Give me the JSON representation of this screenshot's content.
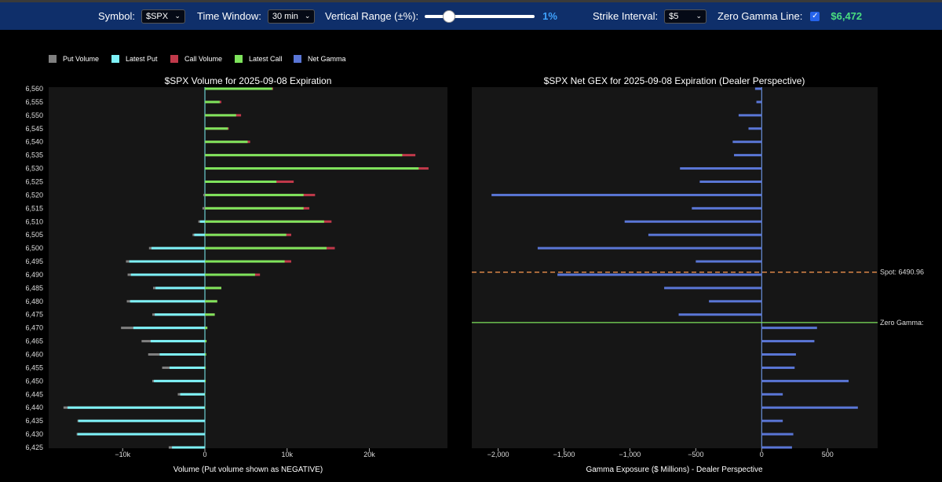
{
  "controls": {
    "symbol_label": "Symbol:",
    "symbol_value": "$SPX",
    "time_label": "Time Window:",
    "time_value": "30 min",
    "range_label": "Vertical Range (±%):",
    "range_value": "1%",
    "range_fraction": 0.01,
    "strike_label": "Strike Interval:",
    "strike_value": "$5",
    "zero_label": "Zero Gamma Line:",
    "zero_checked": true,
    "zero_value": "$6,472"
  },
  "legend": [
    {
      "label": "Put Volume",
      "color": "#808080"
    },
    {
      "label": "Latest Put",
      "color": "#7ef2f8"
    },
    {
      "label": "Call Volume",
      "color": "#c0394a"
    },
    {
      "label": "Latest Call",
      "color": "#7ee45c"
    },
    {
      "label": "Net Gamma",
      "color": "#5a76d6"
    }
  ],
  "chart_data": [
    {
      "type": "bar",
      "orientation": "horizontal",
      "title": "$SPX Volume for 2025-09-08 Expiration",
      "xlabel": "Volume (Put volume shown as NEGATIVE)",
      "ylabel": "",
      "xlim": [
        -19000,
        29500
      ],
      "x_ticks": [
        {
          "v": -10000,
          "label": "−10k"
        },
        {
          "v": 0,
          "label": "0"
        },
        {
          "v": 10000,
          "label": "10k"
        },
        {
          "v": 20000,
          "label": "20k"
        }
      ],
      "strikes": [
        6560,
        6555,
        6550,
        6545,
        6540,
        6535,
        6530,
        6525,
        6520,
        6515,
        6510,
        6505,
        6500,
        6495,
        6490,
        6485,
        6480,
        6475,
        6470,
        6465,
        6460,
        6455,
        6450,
        6445,
        6440,
        6435,
        6430,
        6425
      ],
      "strike_labels": [
        "6,560",
        "6,555",
        "6,550",
        "6,545",
        "6,540",
        "6,535",
        "6,530",
        "6,525",
        "6,520",
        "6,515",
        "6,510",
        "6,505",
        "6,500",
        "6,495",
        "6,490",
        "6,485",
        "6,480",
        "6,475",
        "6,470",
        "6,465",
        "6,460",
        "6,455",
        "6,450",
        "6,445",
        "6,440",
        "6,435",
        "6,430",
        "6,425"
      ],
      "series": [
        {
          "name": "Put Volume",
          "color": "#808080",
          "values": [
            0,
            0,
            0,
            0,
            0,
            0,
            0,
            0,
            -200,
            -300,
            -800,
            -1500,
            -6800,
            -9600,
            -9400,
            -6300,
            -9500,
            -6400,
            -10200,
            -7700,
            -6900,
            -5200,
            -6400,
            -3300,
            -17200,
            -15500,
            -15600,
            -4400
          ]
        },
        {
          "name": "Latest Put",
          "color": "#7ef2f8",
          "values": [
            0,
            0,
            0,
            0,
            0,
            0,
            0,
            0,
            0,
            0,
            -600,
            -1300,
            -6500,
            -9200,
            -9000,
            -6000,
            -9100,
            -6100,
            -8700,
            -6600,
            -5500,
            -4300,
            -6200,
            -3000,
            -16700,
            -15400,
            -15500,
            -4000
          ]
        },
        {
          "name": "Call Volume",
          "color": "#c0394a",
          "values": [
            8300,
            2000,
            4400,
            2900,
            5500,
            25600,
            27200,
            10800,
            13400,
            12700,
            15400,
            10500,
            15800,
            10500,
            6700,
            2000,
            1500,
            1200,
            300,
            200,
            150,
            100,
            100,
            50,
            50,
            0,
            0,
            0
          ]
        },
        {
          "name": "Latest Call",
          "color": "#7ee45c",
          "values": [
            8200,
            1800,
            3800,
            2800,
            5200,
            24000,
            26000,
            8700,
            12000,
            12000,
            14500,
            9900,
            14800,
            9700,
            6100,
            2000,
            1500,
            1200,
            300,
            200,
            150,
            100,
            100,
            50,
            50,
            0,
            0,
            0
          ]
        }
      ]
    },
    {
      "type": "bar",
      "orientation": "horizontal",
      "title": "$SPX Net GEX for 2025-09-08 Expiration (Dealer Perspective)",
      "xlabel": "Gamma Exposure ($ Millions) - Dealer Perspective",
      "ylabel": "",
      "xlim": [
        -2200,
        880
      ],
      "x_ticks": [
        {
          "v": -2000,
          "label": "−2,000"
        },
        {
          "v": -1500,
          "label": "−1,500"
        },
        {
          "v": -1000,
          "label": "−1,000"
        },
        {
          "v": -500,
          "label": "−500"
        },
        {
          "v": 0,
          "label": "0"
        },
        {
          "v": 500,
          "label": "500"
        }
      ],
      "strikes": [
        6560,
        6555,
        6550,
        6545,
        6540,
        6535,
        6530,
        6525,
        6520,
        6515,
        6510,
        6505,
        6500,
        6495,
        6490,
        6485,
        6480,
        6475,
        6470,
        6465,
        6460,
        6455,
        6450,
        6445,
        6440,
        6435,
        6430,
        6425
      ],
      "series": [
        {
          "name": "Net Gamma",
          "color": "#5a76d6",
          "values": [
            -50,
            -40,
            -175,
            -100,
            -220,
            -210,
            -620,
            -470,
            -2050,
            -530,
            -1040,
            -860,
            -1700,
            -500,
            -1550,
            -740,
            -400,
            -630,
            420,
            400,
            260,
            250,
            660,
            160,
            730,
            160,
            240,
            230
          ]
        }
      ],
      "annotations": [
        {
          "label": "Spot: 6490.96",
          "strike": 6490.96,
          "color": "#ff9a52",
          "style": "dashed"
        },
        {
          "label": "Zero Gamma:",
          "strike": 6472,
          "color": "#7ee45c",
          "style": "solid"
        }
      ]
    }
  ]
}
